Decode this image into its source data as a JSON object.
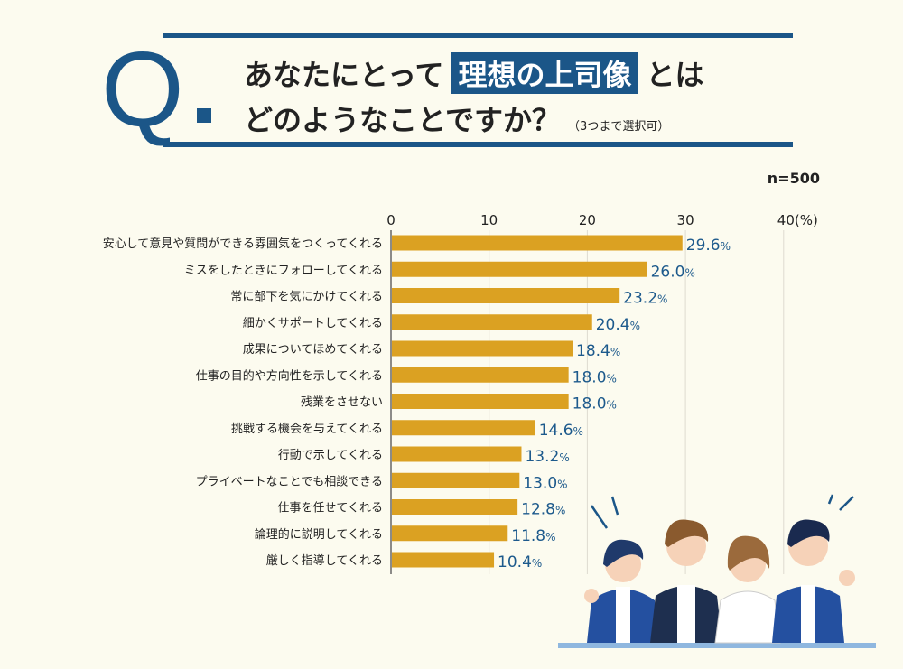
{
  "header": {
    "q_mark": "Q",
    "line1_pre": "あなたにとって",
    "line1_highlight": "理想の上司像",
    "line1_post": "とは",
    "line2": "どのようなことですか？",
    "note": "（3つまで選択可）"
  },
  "sample_size": "n=500",
  "colors": {
    "bar": "#dba122",
    "accent": "#1b5688",
    "value_label": "#1d5a8c"
  },
  "chart_data": {
    "type": "bar",
    "orientation": "horizontal",
    "categories": [
      "安心して意見や質問ができる雰囲気をつくってくれる",
      "ミスをしたときにフォローしてくれる",
      "常に部下を気にかけてくれる",
      "細かくサポートしてくれる",
      "成果についてほめてくれる",
      "仕事の目的や方向性を示してくれる",
      "残業をさせない",
      "挑戦する機会を与えてくれる",
      "行動で示してくれる",
      "プライベートなことでも相談できる",
      "仕事を任せてくれる",
      "論理的に説明してくれる",
      "厳しく指導してくれる"
    ],
    "values": [
      29.6,
      26.0,
      23.2,
      20.4,
      18.4,
      18.0,
      18.0,
      14.6,
      13.2,
      13.0,
      12.8,
      11.8,
      10.4
    ],
    "value_labels": [
      "29.6%",
      "26.0%",
      "23.2%",
      "20.4%",
      "18.4%",
      "18.0%",
      "18.0%",
      "14.6%",
      "13.2%",
      "13.0%",
      "12.8%",
      "11.8%",
      "10.4%"
    ],
    "xlim": [
      0,
      40
    ],
    "ticks": [
      "0",
      "10",
      "20",
      "30",
      "40(%)"
    ],
    "grid": true
  }
}
